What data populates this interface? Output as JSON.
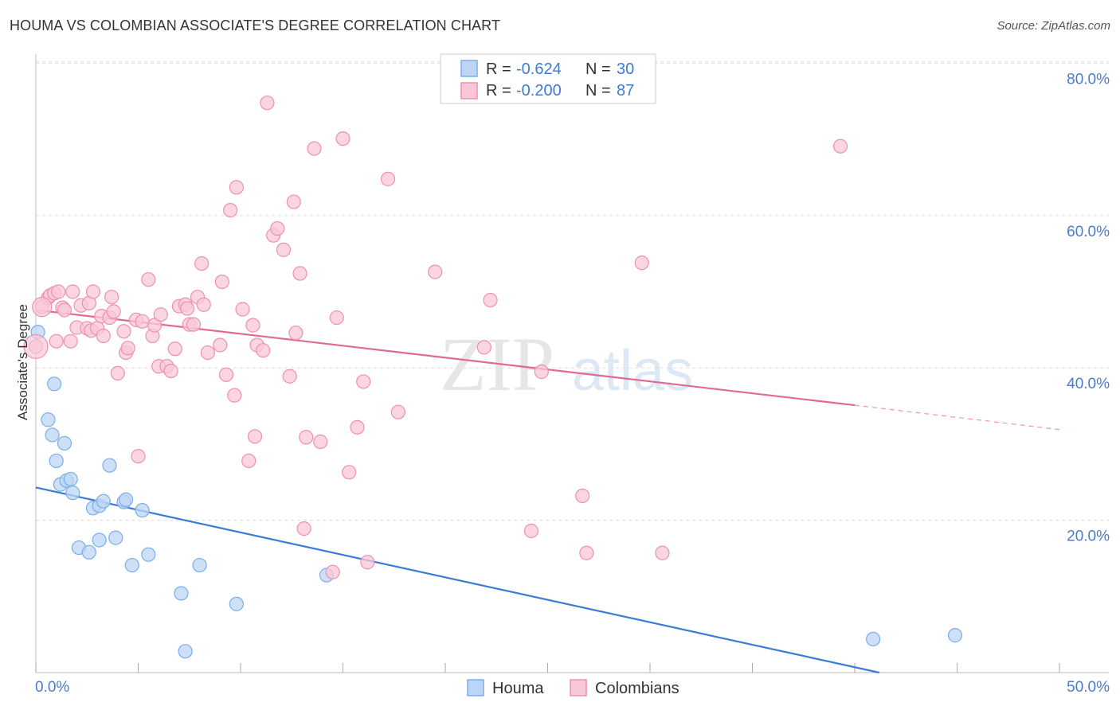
{
  "header": {
    "title": "HOUMA VS COLOMBIAN ASSOCIATE'S DEGREE CORRELATION CHART",
    "source": "Source: ZipAtlas.com"
  },
  "watermark": {
    "zip": "ZIP",
    "atlas": "atlas"
  },
  "legend_top": [
    {
      "r_label": "R = ",
      "r_value": "-0.624",
      "n_label": "N = ",
      "n_value": "30",
      "color": "#7aaee8",
      "fill": "#bcd5f5"
    },
    {
      "r_label": "R = ",
      "r_value": "-0.200",
      "n_label": "N = ",
      "n_value": "87",
      "color": "#ef8fb0",
      "fill": "#f9c8d8"
    }
  ],
  "legend_bottom": [
    {
      "label": "Houma",
      "color": "#7aaee8",
      "fill": "#bcd5f5"
    },
    {
      "label": "Colombians",
      "color": "#ef8fb0",
      "fill": "#f9c8d8"
    }
  ],
  "chart_data": {
    "type": "scatter",
    "title": "HOUMA VS COLOMBIAN ASSOCIATE'S DEGREE CORRELATION CHART",
    "xlabel": "",
    "ylabel": "Associate's Degree",
    "xlim": [
      0,
      50
    ],
    "ylim": [
      0,
      80
    ],
    "x_tick_labels": [
      "0.0%",
      "50.0%"
    ],
    "y_ticks": [
      20,
      40,
      60,
      80
    ],
    "y_tick_labels": [
      "20.0%",
      "40.0%",
      "60.0%",
      "80.0%"
    ],
    "grid": true,
    "legend": "top-center",
    "series": [
      {
        "name": "Houma",
        "color": "#3a7bd5",
        "marker_fill": "#bcd5f5",
        "marker_stroke": "#7aaee8",
        "trend": {
          "x0": 0,
          "y0": 24.3,
          "x1": 41.2,
          "y1": 0,
          "dashed_to": null
        },
        "points": [
          [
            0.1,
            44.7
          ],
          [
            0.6,
            33.2
          ],
          [
            0.8,
            31.2
          ],
          [
            0.9,
            37.9
          ],
          [
            1.0,
            27.8
          ],
          [
            1.2,
            24.7
          ],
          [
            1.4,
            30.1
          ],
          [
            1.5,
            25.2
          ],
          [
            1.7,
            25.4
          ],
          [
            1.8,
            23.6
          ],
          [
            2.1,
            16.4
          ],
          [
            2.6,
            15.8
          ],
          [
            2.8,
            21.6
          ],
          [
            3.1,
            17.4
          ],
          [
            3.1,
            21.9
          ],
          [
            3.3,
            22.5
          ],
          [
            3.6,
            27.2
          ],
          [
            3.9,
            17.7
          ],
          [
            4.3,
            22.4
          ],
          [
            4.4,
            22.7
          ],
          [
            4.7,
            14.1
          ],
          [
            5.2,
            21.3
          ],
          [
            5.5,
            15.5
          ],
          [
            7.1,
            10.4
          ],
          [
            7.3,
            2.8
          ],
          [
            8.0,
            14.1
          ],
          [
            9.8,
            9.0
          ],
          [
            14.2,
            12.8
          ],
          [
            40.9,
            4.4
          ],
          [
            44.9,
            4.9
          ]
        ]
      },
      {
        "name": "Colombians",
        "color": "#e06a95",
        "marker_fill": "#f9c8d8",
        "marker_stroke": "#ef8fb0",
        "trend": {
          "x0": 0,
          "y0": 47.6,
          "x1": 40.0,
          "y1": 35.1,
          "dashed_to": [
            50,
            31.9
          ]
        },
        "points": [
          [
            0.0,
            42.8
          ],
          [
            0.3,
            48.0
          ],
          [
            0.6,
            49.2
          ],
          [
            0.7,
            49.5
          ],
          [
            0.9,
            49.8
          ],
          [
            1.0,
            43.5
          ],
          [
            1.1,
            50.0
          ],
          [
            1.3,
            47.9
          ],
          [
            1.4,
            47.6
          ],
          [
            1.7,
            43.5
          ],
          [
            1.8,
            50.0
          ],
          [
            2.0,
            45.3
          ],
          [
            2.2,
            48.2
          ],
          [
            2.5,
            45.2
          ],
          [
            2.6,
            48.5
          ],
          [
            2.7,
            44.9
          ],
          [
            2.8,
            50.0
          ],
          [
            3.0,
            45.2
          ],
          [
            3.2,
            46.8
          ],
          [
            3.3,
            44.2
          ],
          [
            3.6,
            46.6
          ],
          [
            3.7,
            49.3
          ],
          [
            3.8,
            47.4
          ],
          [
            4.0,
            39.3
          ],
          [
            4.3,
            44.8
          ],
          [
            4.4,
            42.0
          ],
          [
            4.5,
            42.6
          ],
          [
            4.9,
            46.3
          ],
          [
            5.0,
            28.4
          ],
          [
            5.2,
            46.1
          ],
          [
            5.5,
            51.6
          ],
          [
            5.7,
            44.2
          ],
          [
            5.8,
            45.6
          ],
          [
            6.0,
            40.2
          ],
          [
            6.1,
            47.0
          ],
          [
            6.4,
            40.2
          ],
          [
            6.6,
            39.6
          ],
          [
            6.8,
            42.5
          ],
          [
            7.0,
            48.1
          ],
          [
            7.3,
            48.3
          ],
          [
            7.4,
            47.8
          ],
          [
            7.5,
            45.7
          ],
          [
            7.7,
            45.7
          ],
          [
            7.9,
            49.3
          ],
          [
            8.1,
            53.7
          ],
          [
            8.2,
            48.3
          ],
          [
            8.4,
            42.0
          ],
          [
            9.0,
            43.0
          ],
          [
            9.1,
            51.3
          ],
          [
            9.3,
            39.1
          ],
          [
            9.5,
            60.7
          ],
          [
            9.7,
            36.4
          ],
          [
            9.8,
            63.7
          ],
          [
            10.1,
            47.7
          ],
          [
            10.4,
            27.8
          ],
          [
            10.6,
            45.6
          ],
          [
            10.7,
            31.0
          ],
          [
            10.8,
            43.0
          ],
          [
            11.1,
            42.3
          ],
          [
            11.3,
            74.8
          ],
          [
            11.6,
            57.4
          ],
          [
            11.8,
            58.3
          ],
          [
            12.1,
            55.5
          ],
          [
            12.4,
            38.9
          ],
          [
            12.6,
            61.8
          ],
          [
            12.7,
            44.6
          ],
          [
            12.9,
            52.4
          ],
          [
            13.1,
            18.9
          ],
          [
            13.2,
            30.9
          ],
          [
            13.6,
            68.8
          ],
          [
            13.9,
            30.3
          ],
          [
            14.5,
            13.2
          ],
          [
            14.7,
            46.6
          ],
          [
            15.0,
            70.1
          ],
          [
            15.3,
            26.3
          ],
          [
            15.7,
            32.2
          ],
          [
            16.0,
            38.2
          ],
          [
            16.2,
            14.5
          ],
          [
            17.2,
            64.8
          ],
          [
            17.7,
            34.2
          ],
          [
            19.5,
            52.6
          ],
          [
            21.9,
            42.7
          ],
          [
            22.2,
            48.9
          ],
          [
            24.2,
            18.6
          ],
          [
            24.7,
            39.5
          ],
          [
            26.7,
            23.2
          ],
          [
            26.9,
            15.7
          ],
          [
            29.6,
            53.8
          ],
          [
            30.6,
            15.7
          ],
          [
            39.3,
            69.1
          ]
        ]
      }
    ]
  }
}
